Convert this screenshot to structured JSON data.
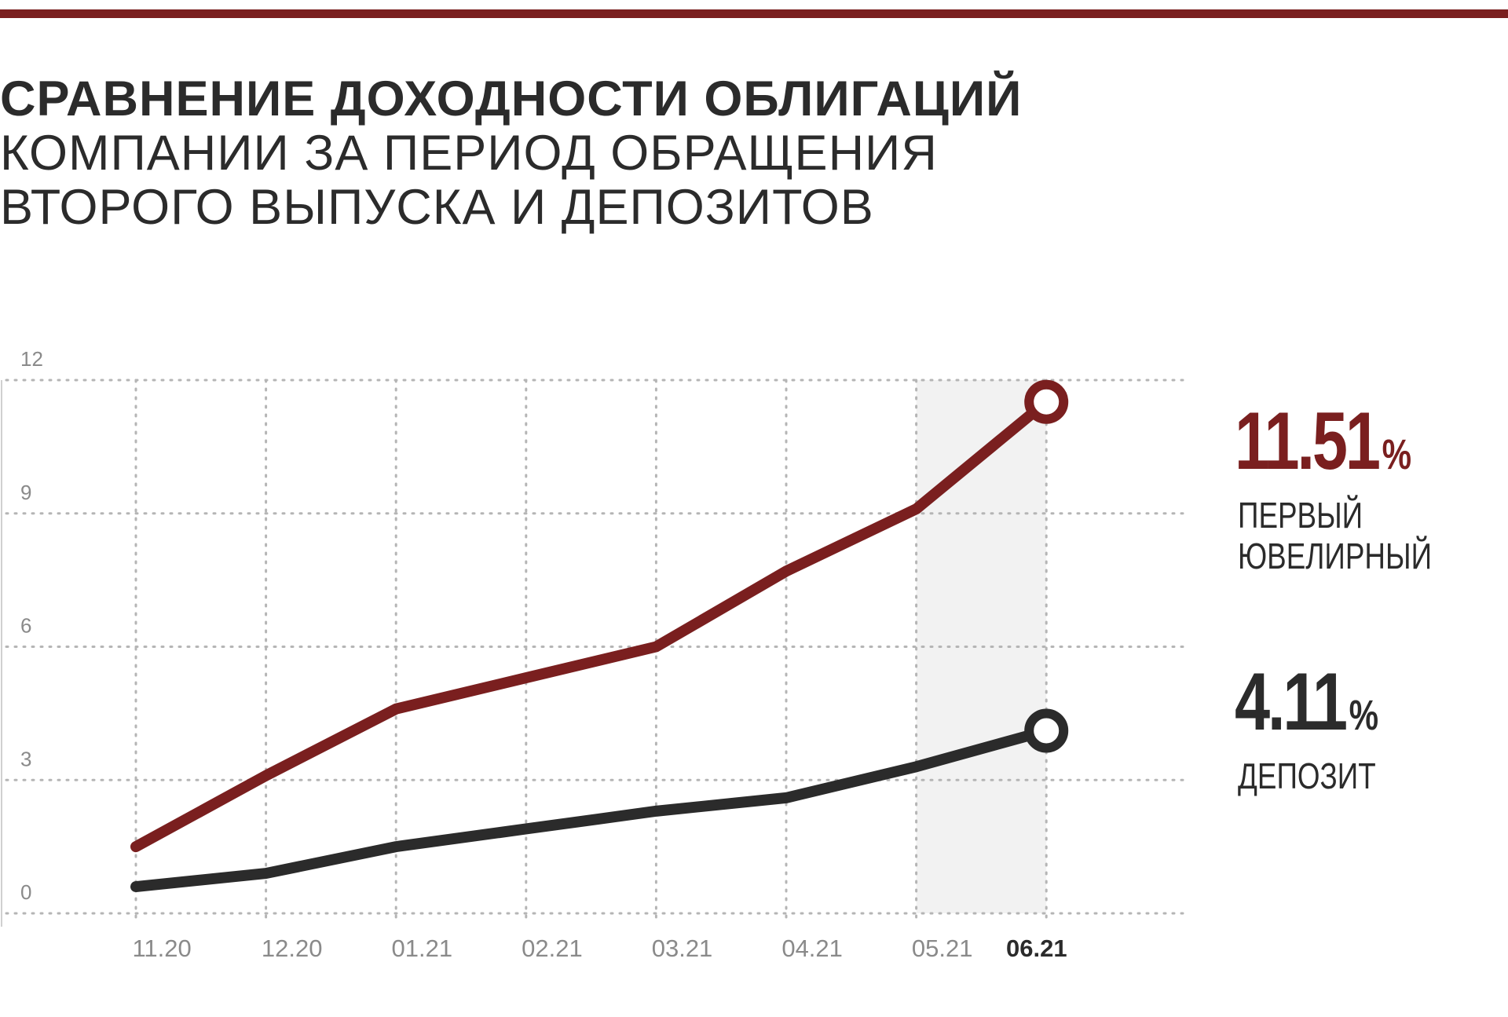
{
  "title": {
    "line1": "СРАВНЕНИЕ ДОХОДНОСТИ ОБЛИГАЦИЙ",
    "line2": "КОМПАНИИ ЗА ПЕРИОД ОБРАЩЕНИЯ",
    "line3": "ВТОРОГО ВЫПУСКА И ДЕПОЗИТОВ"
  },
  "colors": {
    "accent": "#7a1f1f",
    "dark": "#2b2b2b",
    "grid": "#b5b5b5",
    "highlight_band": "#f2f2f2"
  },
  "legend": {
    "bonds": {
      "value": "11.51",
      "unit": "%",
      "label": "ПЕРВЫЙ ЮВЕЛИРНЫЙ"
    },
    "deposit": {
      "value": "4.11",
      "unit": "%",
      "label": "ДЕПОЗИТ"
    }
  },
  "chart_data": {
    "type": "line",
    "categories": [
      "11.20",
      "12.20",
      "01.21",
      "02.21",
      "03.21",
      "04.21",
      "05.21",
      "06.21"
    ],
    "highlighted_category": "06.21",
    "ylim": [
      0,
      12
    ],
    "yticks": [
      "12",
      "9",
      "6",
      "3",
      "0"
    ],
    "grid": true,
    "series": [
      {
        "name": "ПЕРВЫЙ ЮВЕЛИРНЫЙ",
        "color": "#7a1f1f",
        "points": [
          [
            0,
            1.5
          ],
          [
            1,
            3.1
          ],
          [
            2,
            4.6
          ],
          [
            3,
            5.3
          ],
          [
            4,
            6.0
          ],
          [
            5,
            7.7
          ],
          [
            6,
            9.1
          ],
          [
            7,
            11.51
          ]
        ]
      },
      {
        "name": "ДЕПОЗИТ",
        "color": "#2b2b2b",
        "points": [
          [
            0,
            0.6
          ],
          [
            1,
            0.9
          ],
          [
            2,
            1.5
          ],
          [
            3,
            1.9
          ],
          [
            4,
            2.3
          ],
          [
            5,
            2.6
          ],
          [
            6,
            3.3
          ],
          [
            7,
            4.11
          ]
        ]
      }
    ]
  }
}
